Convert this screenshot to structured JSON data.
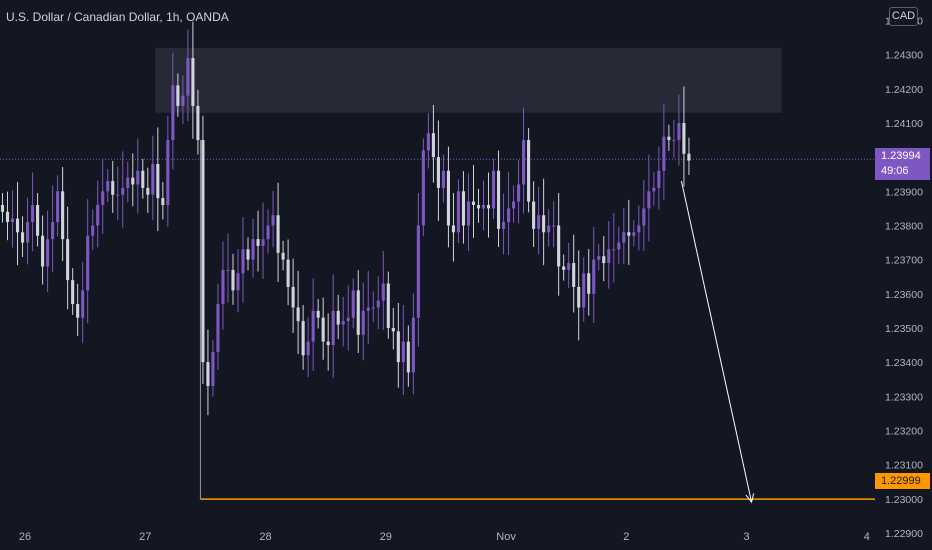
{
  "header": {
    "title": "U.S. Dollar / Canadian Dollar, 1h, OANDA",
    "currency": "CAD"
  },
  "price_tags": {
    "current_price": "1.23994",
    "countdown": "49:06",
    "target_price": "1.22999"
  },
  "colors": {
    "background": "#131722",
    "bull_candle": "#7e57c2",
    "bear_candle": "#d1d4dc",
    "zone": "#2a2e39",
    "target_line": "#ff9800",
    "current_line": "#7e57c2",
    "arrow": "#ffffff",
    "axis_text": "#b2b5be"
  },
  "chart_data": {
    "type": "candlestick",
    "title": "U.S. Dollar / Canadian Dollar, 1h, OANDA",
    "ylim": [
      1.2285,
      1.2446
    ],
    "xlim": [
      0,
      168
    ],
    "y_ticks": [
      "1.22900",
      "1.23000",
      "1.23100",
      "1.23200",
      "1.23300",
      "1.23400",
      "1.23500",
      "1.23600",
      "1.23700",
      "1.23800",
      "1.23900",
      "1.24000",
      "1.24100",
      "1.24200",
      "1.24300",
      "1.24400"
    ],
    "x_ticks": [
      {
        "label": "26",
        "x": 5
      },
      {
        "label": "27",
        "x": 29
      },
      {
        "label": "28",
        "x": 53
      },
      {
        "label": "29",
        "x": 77
      },
      {
        "label": "Nov",
        "x": 101
      },
      {
        "label": "2",
        "x": 125
      },
      {
        "label": "3",
        "x": 149
      },
      {
        "label": "4",
        "x": 173
      }
    ],
    "grid": false,
    "current_price": 1.23994,
    "target_price": 1.22999,
    "zone": {
      "x_start": 31,
      "x_end": 156,
      "high": 1.2432,
      "low": 1.2413
    },
    "target_line_x_start": 40,
    "arrow": {
      "x_start": 136,
      "y_start": 1.2393,
      "x_end": 150,
      "y_end": 1.2299
    },
    "closes": [
      1.2384,
      1.2381,
      1.2382,
      1.2378,
      1.2375,
      1.2381,
      1.2386,
      1.2377,
      1.2368,
      1.2376,
      1.2381,
      1.239,
      1.2376,
      1.2364,
      1.2357,
      1.2353,
      1.2361,
      1.2377,
      1.238,
      1.2386,
      1.239,
      1.2393,
      1.2389,
      1.2389,
      1.2391,
      1.2394,
      1.2392,
      1.2396,
      1.2391,
      1.2389,
      1.2398,
      1.2388,
      1.2386,
      1.2405,
      1.2421,
      1.2415,
      1.2418,
      1.2429,
      1.2415,
      1.2405,
      1.234,
      1.2333,
      1.2343,
      1.2357,
      1.2367,
      1.2367,
      1.2361,
      1.2366,
      1.2373,
      1.237,
      1.2376,
      1.2374,
      1.2376,
      1.238,
      1.2383,
      1.2372,
      1.237,
      1.2362,
      1.2356,
      1.2352,
      1.2342,
      1.2346,
      1.2355,
      1.2353,
      1.2346,
      1.2345,
      1.2355,
      1.2351,
      1.2352,
      1.2353,
      1.2361,
      1.2348,
      1.2355,
      1.2356,
      1.2356,
      1.2358,
      1.2363,
      1.235,
      1.2349,
      1.234,
      1.2346,
      1.2337,
      1.2353,
      1.238,
      1.2402,
      1.2407,
      1.24,
      1.2391,
      1.2396,
      1.238,
      1.2378,
      1.239,
      1.238,
      1.2387,
      1.2386,
      1.2385,
      1.2386,
      1.2385,
      1.2396,
      1.2379,
      1.2381,
      1.2385,
      1.2387,
      1.2392,
      1.2405,
      1.2387,
      1.2379,
      1.2383,
      1.2378,
      1.238,
      1.238,
      1.2368,
      1.2367,
      1.2369,
      1.2362,
      1.2356,
      1.2366,
      1.236,
      1.237,
      1.2371,
      1.2369,
      1.2373,
      1.2373,
      1.2375,
      1.2378,
      1.2377,
      1.2378,
      1.238,
      1.2385,
      1.239,
      1.2391,
      1.2396,
      1.2406,
      1.2405,
      1.2405,
      1.241,
      1.2401,
      1.2399
    ]
  }
}
